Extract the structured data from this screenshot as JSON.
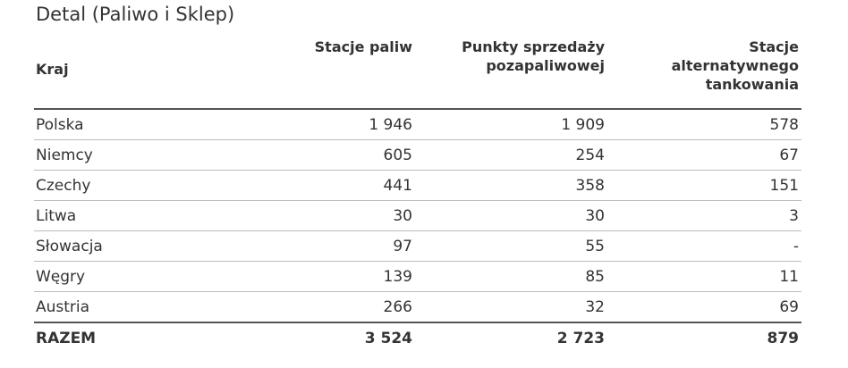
{
  "title": "Detal (Paliwo i Sklep)",
  "table": {
    "headers": [
      "Kraj",
      "Stacje paliw",
      "Punkty sprzedaży pozapaliwowej",
      "Stacje alternatywnego tankowania"
    ],
    "rows": [
      [
        "Polska",
        "1 946",
        "1 909",
        "578"
      ],
      [
        "Niemcy",
        "605",
        "254",
        "67"
      ],
      [
        "Czechy",
        "441",
        "358",
        "151"
      ],
      [
        "Litwa",
        "30",
        "30",
        "3"
      ],
      [
        "Słowacja",
        "97",
        "55",
        "-"
      ],
      [
        "Węgry",
        "139",
        "85",
        "11"
      ],
      [
        "Austria",
        "266",
        "32",
        "69"
      ]
    ],
    "total": [
      "RAZEM",
      "3 524",
      "2 723",
      "879"
    ]
  }
}
